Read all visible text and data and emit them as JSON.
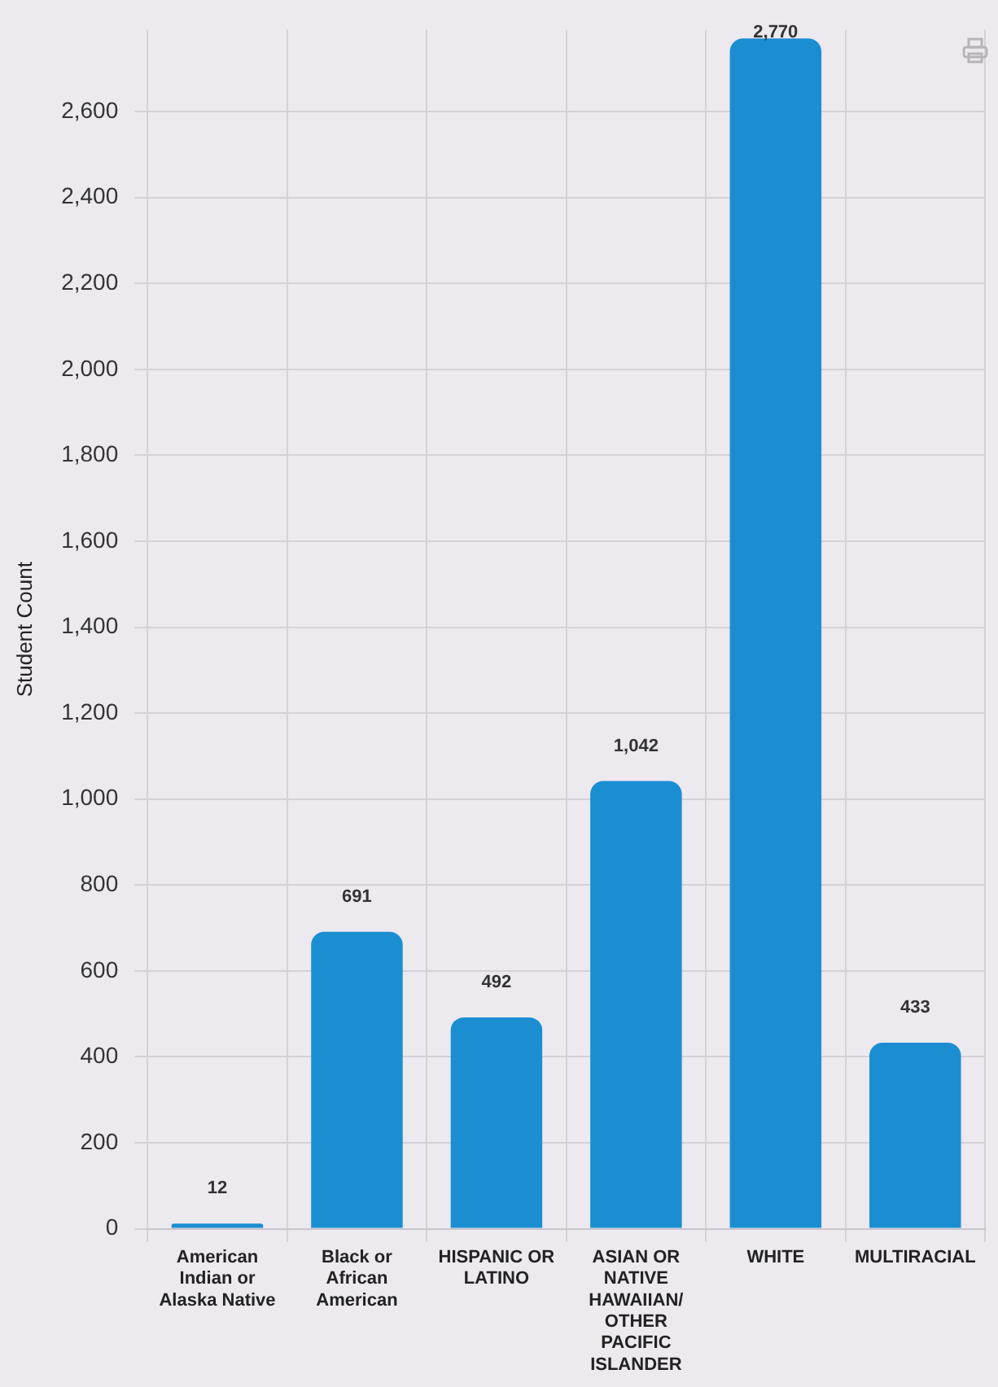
{
  "chart_data": {
    "type": "bar",
    "ylabel": "Student Count",
    "categories": [
      "American Indian or Alaska Native",
      "Black or African American",
      "HISPANIC OR LATINO",
      "ASIAN OR NATIVE HAWAIIAN/ OTHER PACIFIC ISLANDER",
      "WHITE",
      "MULTIRACIAL"
    ],
    "values": [
      12,
      691,
      492,
      1042,
      2770,
      433
    ],
    "value_labels": [
      "12",
      "691",
      "492",
      "1,042",
      "2,770",
      "433"
    ],
    "color": "#1b8ed2",
    "ylim": [
      0,
      2790
    ],
    "yticks": [
      0,
      200,
      400,
      600,
      800,
      {
        "value": 1000,
        "label": "1,000"
      },
      {
        "value": 1200,
        "label": "1,200"
      },
      {
        "value": 1400,
        "label": "1,400"
      },
      {
        "value": 1600,
        "label": "1,600"
      },
      {
        "value": 1800,
        "label": "1,800"
      },
      {
        "value": 2000,
        "label": "2,000"
      },
      {
        "value": 2200,
        "label": "2,200"
      },
      {
        "value": 2400,
        "label": "2,400"
      },
      {
        "value": 2600,
        "label": "2,600"
      }
    ],
    "grid": true,
    "legend": false
  }
}
